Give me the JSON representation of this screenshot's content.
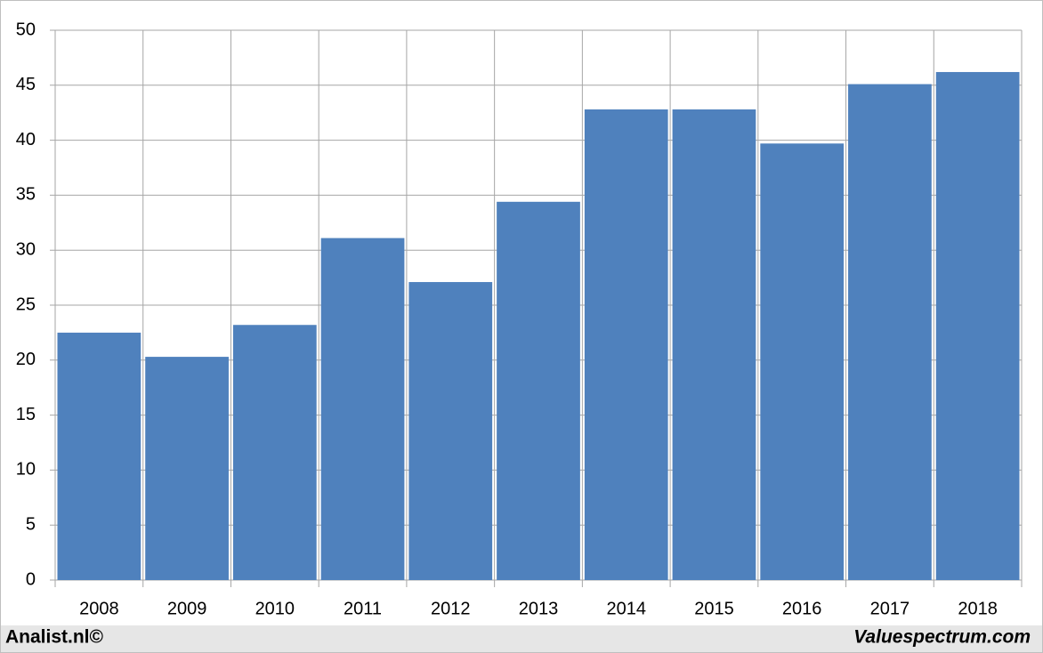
{
  "chart_data": {
    "type": "bar",
    "categories": [
      "2008",
      "2009",
      "2010",
      "2011",
      "2012",
      "2013",
      "2014",
      "2015",
      "2016",
      "2017",
      "2018"
    ],
    "values": [
      22.5,
      20.3,
      23.2,
      31.1,
      27.1,
      34.4,
      42.8,
      42.8,
      39.7,
      45.1,
      46.2
    ],
    "color": "#4f81bd",
    "ylim": [
      0,
      50
    ],
    "yticks": [
      0,
      5,
      10,
      15,
      20,
      25,
      30,
      35,
      40,
      45,
      50
    ],
    "grid": true,
    "footer_left": "Analist.nl©",
    "footer_right": "Valuespectrum.com"
  }
}
